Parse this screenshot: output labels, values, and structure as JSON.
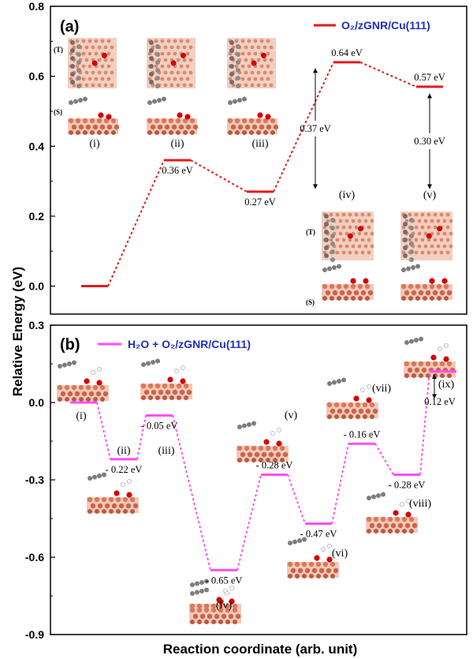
{
  "figure": {
    "ylabel": "Relative Energy (eV)",
    "xlabel": "Reaction coordinate (arb. unit)",
    "view_labels": [
      "(T)",
      "(S)"
    ]
  },
  "chart_data": [
    {
      "type": "line",
      "panel_label": "(a)",
      "legend": "O₂/zGNR/Cu(111)",
      "color": "#e31a1c",
      "ylim": [
        -0.08,
        0.8
      ],
      "yticks": [
        "0.0",
        "0.2",
        "0.4",
        "0.6",
        "0.8"
      ],
      "ytick_values": [
        0.0,
        0.2,
        0.4,
        0.6,
        0.8
      ],
      "states": [
        "(i)",
        "(ii)",
        "(iii)",
        "(iv)",
        "(v)"
      ],
      "energies": [
        0.0,
        0.36,
        0.27,
        0.64,
        0.57
      ],
      "energy_labels": [
        "",
        "0.36 eV",
        "0.27 eV",
        "0.64 eV",
        "0.57 eV"
      ],
      "barriers": [
        {
          "label": "0.37 eV",
          "from": 0.27,
          "to": 0.64
        },
        {
          "label": "0.30 eV",
          "from": 0.27,
          "to": 0.57
        }
      ]
    },
    {
      "type": "line",
      "panel_label": "(b)",
      "legend": "H₂O + O₂/zGNR/Cu(111)",
      "color": "#ff4df5",
      "ylim": [
        -0.9,
        0.3
      ],
      "yticks": [
        "-0.9",
        "-0.6",
        "-0.3",
        "0.0",
        "0.3"
      ],
      "ytick_values": [
        -0.9,
        -0.6,
        -0.3,
        0.0,
        0.3
      ],
      "states": [
        "(i)",
        "(ii)",
        "(iii)",
        "(iv)",
        "(v)",
        "(vi)",
        "(vii)",
        "(viii)",
        "(ix)"
      ],
      "energies": [
        0.0,
        -0.22,
        -0.05,
        -0.65,
        -0.28,
        -0.47,
        -0.16,
        -0.28,
        0.12
      ],
      "energy_labels": [
        "",
        "- 0.22 eV",
        "- 0.05 eV",
        "- 0.65 eV",
        "- 0.28 eV",
        "- 0.47 eV",
        "- 0.16 eV",
        "- 0.28 eV",
        "0.12 eV"
      ]
    }
  ]
}
